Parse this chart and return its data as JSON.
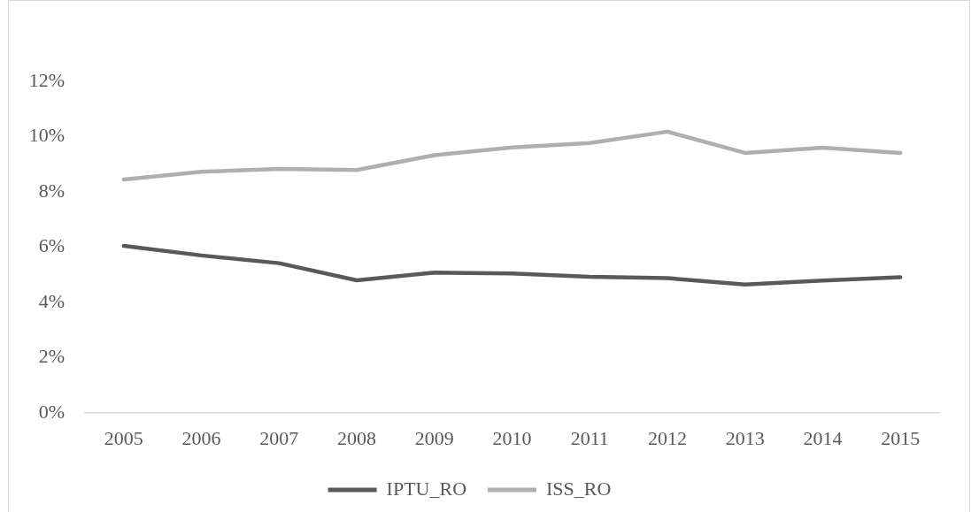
{
  "chart_data": {
    "type": "line",
    "categories": [
      "2005",
      "2006",
      "2007",
      "2008",
      "2009",
      "2010",
      "2011",
      "2012",
      "2013",
      "2014",
      "2015"
    ],
    "series": [
      {
        "name": "IPTU_RO",
        "color": "#595959",
        "values": [
          6.05,
          5.7,
          5.42,
          4.8,
          5.08,
          5.05,
          4.93,
          4.88,
          4.65,
          4.79,
          4.91
        ]
      },
      {
        "name": "ISS_RO",
        "color": "#afafaf",
        "values": [
          8.45,
          8.73,
          8.83,
          8.79,
          9.33,
          9.61,
          9.77,
          10.18,
          9.41,
          9.6,
          9.41
        ]
      }
    ],
    "ylim": [
      0,
      12
    ],
    "yticks": [
      {
        "value": 0,
        "label": "0%"
      },
      {
        "value": 2,
        "label": "2%"
      },
      {
        "value": 4,
        "label": "4%"
      },
      {
        "value": 6,
        "label": "6%"
      },
      {
        "value": 8,
        "label": "8%"
      },
      {
        "value": 10,
        "label": "10%"
      },
      {
        "value": 12,
        "label": "12%"
      }
    ],
    "legend": "bottom"
  }
}
